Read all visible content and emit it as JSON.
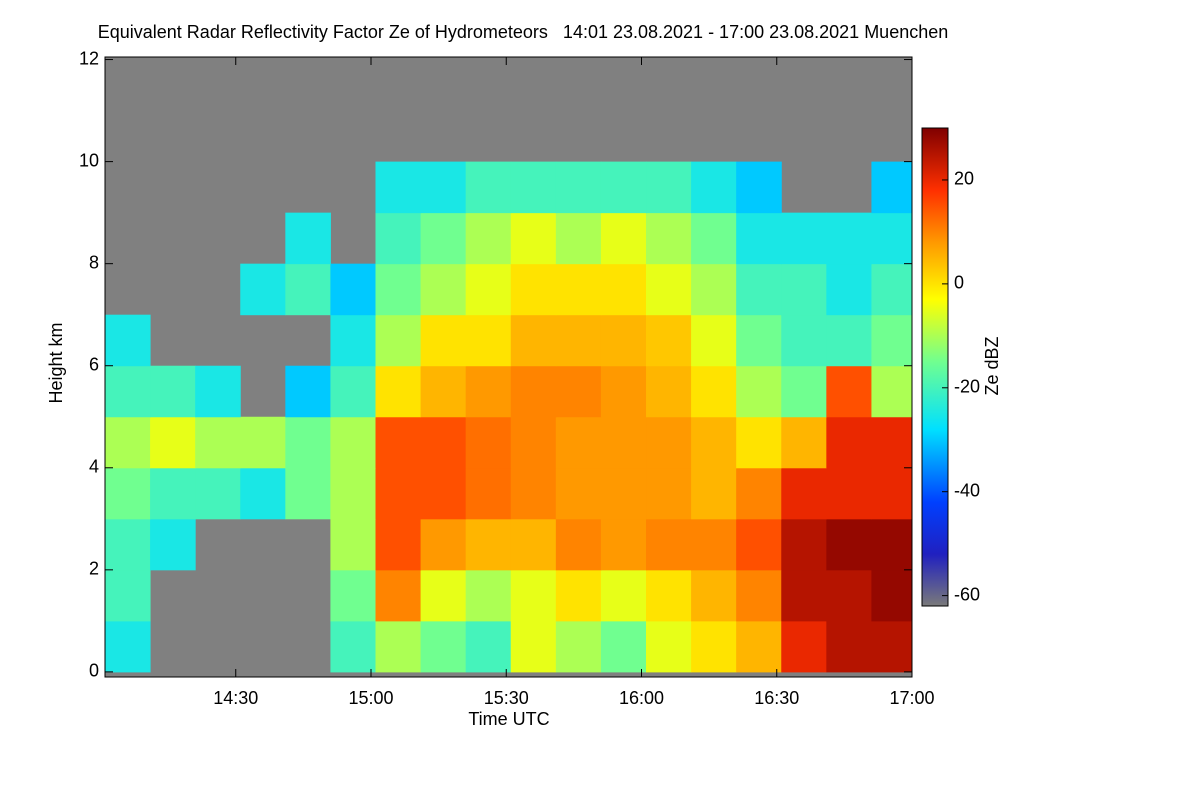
{
  "chart_data": {
    "type": "heatmap",
    "title": "Equivalent Radar Reflectivity Factor Ze of Hydrometeors   14:01 23.08.2021 - 17:00 23.08.2021 Muenchen",
    "x_label": "Time UTC",
    "y_label": "Height km",
    "colorbar_label": "Ze dBZ",
    "xlim": [
      "14:01",
      "17:00"
    ],
    "xticks": [
      "14:30",
      "15:00",
      "15:30",
      "16:00",
      "16:30",
      "17:00"
    ],
    "ylim": [
      -0.1,
      12.05
    ],
    "yticks": [
      0,
      2,
      4,
      6,
      8,
      10,
      12
    ],
    "zlim": [
      -62,
      30
    ],
    "zticks": [
      -60,
      -40,
      -20,
      0,
      20
    ],
    "nodata_color": "#808080",
    "colorscale": [
      [
        -62,
        "#7a7a7a"
      ],
      [
        -52,
        "#2020c0"
      ],
      [
        -42,
        "#0040ff"
      ],
      [
        -28,
        "#00e0ff"
      ],
      [
        -15,
        "#70ff90"
      ],
      [
        -3,
        "#ffff00"
      ],
      [
        8,
        "#ff9900"
      ],
      [
        18,
        "#ff3000"
      ],
      [
        30,
        "#800000"
      ]
    ],
    "xbins": [
      "14:01",
      "14:11",
      "14:21",
      "14:31",
      "14:41",
      "14:51",
      "15:01",
      "15:11",
      "15:21",
      "15:31",
      "15:41",
      "15:51",
      "16:01",
      "16:11",
      "16:21",
      "16:31",
      "16:41",
      "16:51",
      "17:00"
    ],
    "ybins": [
      0,
      1,
      2,
      3,
      4,
      5,
      6,
      7,
      8,
      9,
      10,
      11,
      12
    ],
    "z": [
      [
        -25,
        null,
        null,
        null,
        null,
        -20,
        -10,
        -15,
        -20,
        -5,
        -10,
        -15,
        -5,
        0,
        5,
        20,
        25,
        25
      ],
      [
        -20,
        null,
        null,
        null,
        null,
        -15,
        10,
        -5,
        -10,
        -5,
        0,
        -5,
        0,
        5,
        10,
        25,
        25,
        28
      ],
      [
        -20,
        -25,
        null,
        null,
        null,
        -10,
        15,
        8,
        5,
        5,
        10,
        8,
        10,
        10,
        15,
        25,
        28,
        28
      ],
      [
        -15,
        -20,
        -20,
        -25,
        -15,
        -10,
        15,
        15,
        12,
        10,
        8,
        8,
        8,
        5,
        10,
        20,
        20,
        20
      ],
      [
        -10,
        -5,
        -10,
        -10,
        -15,
        -10,
        15,
        15,
        12,
        10,
        8,
        8,
        8,
        5,
        0,
        5,
        20,
        20
      ],
      [
        -20,
        -20,
        -25,
        null,
        -30,
        -20,
        0,
        5,
        8,
        10,
        10,
        8,
        5,
        0,
        -10,
        -15,
        15,
        -10
      ],
      [
        -25,
        null,
        null,
        null,
        null,
        -25,
        -10,
        0,
        0,
        5,
        5,
        5,
        3,
        -5,
        -15,
        -20,
        -20,
        -15
      ],
      [
        null,
        null,
        null,
        -25,
        -20,
        -30,
        -15,
        -10,
        -5,
        0,
        0,
        0,
        -5,
        -10,
        -20,
        -20,
        -25,
        -20
      ],
      [
        null,
        null,
        null,
        null,
        -25,
        null,
        -20,
        -15,
        -10,
        -5,
        -10,
        -5,
        -10,
        -15,
        -25,
        -25,
        -25,
        -25
      ],
      [
        null,
        null,
        null,
        null,
        null,
        null,
        -25,
        -25,
        -20,
        -20,
        -20,
        -20,
        -20,
        -25,
        -30,
        null,
        null,
        -30
      ],
      [
        null,
        null,
        null,
        null,
        null,
        null,
        null,
        null,
        null,
        null,
        null,
        null,
        null,
        null,
        null,
        null,
        null,
        null
      ],
      [
        null,
        null,
        null,
        null,
        null,
        null,
        null,
        null,
        null,
        null,
        null,
        null,
        null,
        null,
        null,
        null,
        null,
        null
      ]
    ]
  }
}
